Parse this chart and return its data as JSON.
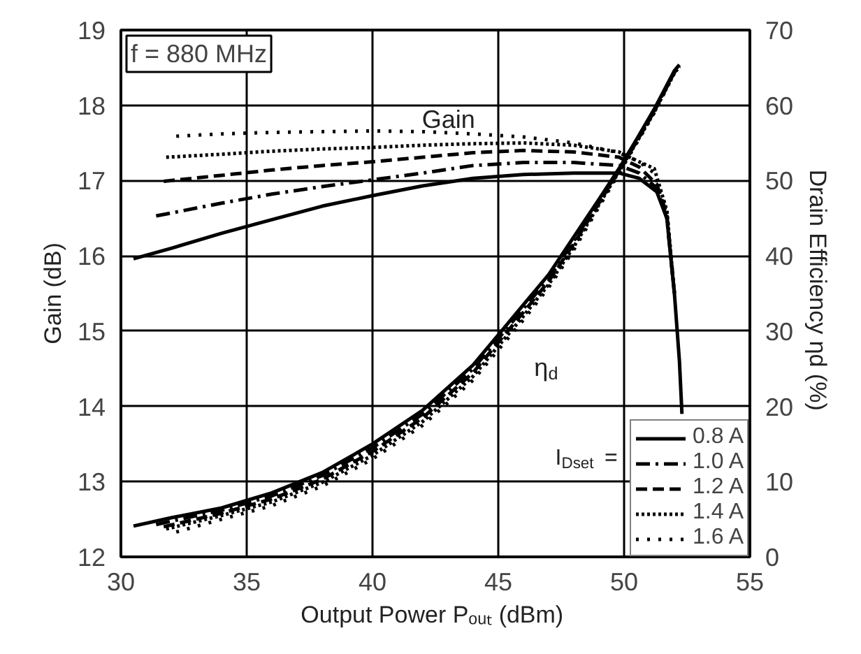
{
  "chart_data": {
    "type": "line",
    "xlabel": "Output Power  Pₒᵤₜ (dBm)",
    "ylabel": "Gain (dB)",
    "y2label": "Drain Efficiency  ηd (%)",
    "legend_title": "I$_{Dset}$ =",
    "legend": "bottom right",
    "grid": true,
    "xlim": [
      30,
      55
    ],
    "xticks": [
      30,
      35,
      40,
      45,
      50,
      55
    ],
    "ylim": [
      12,
      19
    ],
    "yticks": [
      12,
      13,
      14,
      15,
      16,
      17,
      18,
      19
    ],
    "y2lim": [
      0,
      70
    ],
    "y2ticks": [
      0,
      10,
      20,
      30,
      40,
      50,
      60,
      70
    ],
    "annotations": [
      "f = 880 MHz",
      "Gain",
      "η$_{d}$"
    ],
    "series": [
      {
        "name": "0.8 A",
        "color": "#000000",
        "line_style": "solid",
        "axis": "y",
        "x": [
          30.5,
          32,
          34,
          36,
          38,
          40,
          42,
          44,
          46,
          48,
          49.8,
          50.6,
          51.3,
          51.7,
          52,
          52.2,
          52.3
        ],
        "values": [
          15.96,
          16.1,
          16.3,
          16.48,
          16.66,
          16.8,
          16.93,
          17.03,
          17.08,
          17.1,
          17.1,
          17.03,
          16.85,
          16.5,
          15.5,
          14.6,
          13.9
        ]
      },
      {
        "name": "1.0 A",
        "color": "#000000",
        "line_style": "dashdot",
        "axis": "y",
        "x": [
          31.4,
          34,
          36,
          38,
          40,
          42,
          44,
          46,
          48,
          49.8,
          50.6,
          51.3,
          51.7,
          52
        ],
        "values": [
          16.53,
          16.7,
          16.82,
          16.92,
          17.01,
          17.1,
          17.2,
          17.24,
          17.24,
          17.2,
          17.1,
          16.9,
          16.5,
          15.5
        ]
      },
      {
        "name": "1.2 A",
        "color": "#000000",
        "line_style": "dashed",
        "axis": "y",
        "x": [
          31.7,
          34,
          36,
          38,
          40,
          42,
          44,
          46,
          48,
          49.8,
          50.6,
          51.3,
          51.7,
          52
        ],
        "values": [
          16.99,
          17.07,
          17.14,
          17.2,
          17.25,
          17.31,
          17.37,
          17.4,
          17.38,
          17.31,
          17.18,
          16.95,
          16.55,
          15.5
        ]
      },
      {
        "name": "1.4 A",
        "color": "#000000",
        "line_style": "dotted",
        "axis": "y",
        "x": [
          31.8,
          34,
          36,
          38,
          40,
          42,
          44,
          46,
          48,
          49.8,
          50.6,
          51.2,
          51.7,
          52
        ],
        "values": [
          17.31,
          17.35,
          17.39,
          17.42,
          17.44,
          17.47,
          17.49,
          17.5,
          17.47,
          17.38,
          17.25,
          17.16,
          16.6,
          15.5
        ]
      },
      {
        "name": "1.6 A",
        "color": "#000000",
        "line_style": "sparsedot",
        "axis": "y",
        "x": [
          32.2,
          34,
          36,
          38,
          40,
          42,
          44,
          46,
          48,
          49.8,
          50.6,
          51.2,
          51.7,
          52
        ],
        "values": [
          17.59,
          17.62,
          17.64,
          17.65,
          17.66,
          17.65,
          17.62,
          17.58,
          17.5,
          17.37,
          17.25,
          17.1,
          16.6,
          15.5
        ]
      },
      {
        "color": "#000000",
        "line_style": "solid",
        "axis": "y2",
        "x": [
          30.5,
          32,
          34,
          36,
          38,
          40,
          42,
          44,
          45,
          46,
          47,
          48,
          49,
          49.8,
          50.5,
          51.2,
          52,
          52.2
        ],
        "values": [
          4.1,
          5.2,
          6.5,
          8.5,
          11.2,
          15,
          19.5,
          25.5,
          29.5,
          33.5,
          37.5,
          42.5,
          47.5,
          51.6,
          55.5,
          59.5,
          64.6,
          65.4
        ]
      },
      {
        "color": "#000000",
        "line_style": "dashdot",
        "axis": "y2",
        "x": [
          31.4,
          34,
          36,
          38,
          40,
          42,
          44,
          45,
          46,
          47,
          48,
          49,
          49.8,
          50.5,
          51.2,
          52,
          52.2
        ],
        "values": [
          4.3,
          6.2,
          8.1,
          10.8,
          14.5,
          19,
          25,
          29,
          33,
          37,
          42,
          47.2,
          51.4,
          55.3,
          59.3,
          64.5,
          65.2
        ]
      },
      {
        "color": "#000000",
        "line_style": "dashed",
        "axis": "y2",
        "x": [
          31.7,
          34,
          36,
          38,
          40,
          42,
          44,
          45,
          46,
          47,
          48,
          49,
          49.8,
          50.5,
          51.2,
          52,
          52.2
        ],
        "values": [
          4,
          5.8,
          7.7,
          10.3,
          14,
          18.5,
          24.5,
          28.5,
          32.5,
          36.6,
          41.6,
          47,
          51.3,
          55.2,
          59.2,
          64.4,
          65.2
        ]
      },
      {
        "color": "#000000",
        "line_style": "dotted",
        "axis": "y2",
        "x": [
          31.8,
          34,
          36,
          38,
          40,
          42,
          44,
          45,
          46,
          47,
          48,
          49,
          49.8,
          50.5,
          51.2,
          52,
          52.2
        ],
        "values": [
          3.7,
          5.5,
          7.3,
          9.9,
          13.5,
          18,
          24,
          28,
          32,
          36.2,
          41.2,
          46.8,
          51.2,
          55.1,
          59.1,
          64.3,
          65.1
        ]
      },
      {
        "color": "#000000",
        "line_style": "sparsedot",
        "axis": "y2",
        "x": [
          32.2,
          34,
          36,
          38,
          40,
          42,
          44,
          45,
          46,
          47,
          48,
          49,
          49.8,
          50.5,
          51.2,
          52,
          52.2
        ],
        "values": [
          3.3,
          5,
          6.8,
          9.4,
          13,
          17.5,
          23.5,
          27.5,
          31.5,
          35.8,
          40.8,
          46.5,
          51,
          55,
          59,
          64.3,
          65.1
        ]
      }
    ]
  }
}
